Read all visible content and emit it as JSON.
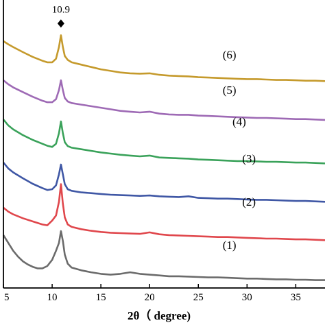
{
  "chart_data": {
    "type": "line",
    "xlabel": "2θ（ degree)",
    "ylabel": "",
    "xlim": [
      5,
      38
    ],
    "ylim": [
      0,
      7
    ],
    "xticks": [
      5,
      10,
      15,
      20,
      25,
      30,
      35
    ],
    "xtick_labels": [
      "5",
      "10",
      "15",
      "20",
      "25",
      "30",
      "35"
    ],
    "y_ticks_shown": false,
    "grid": false,
    "legend": "none",
    "annotations": [
      {
        "text": "10.9",
        "marker": "diamond",
        "x": 10.9,
        "y": 6.75
      }
    ],
    "series": [
      {
        "name": "(1)",
        "color": "#6b6b6b",
        "label_at": {
          "x": 27.5,
          "y": 1.0
        },
        "points": [
          [
            5,
            1.35
          ],
          [
            5.5,
            1.15
          ],
          [
            6,
            0.95
          ],
          [
            6.5,
            0.8
          ],
          [
            7,
            0.68
          ],
          [
            7.5,
            0.6
          ],
          [
            8,
            0.54
          ],
          [
            8.5,
            0.5
          ],
          [
            9,
            0.5
          ],
          [
            9.5,
            0.56
          ],
          [
            10,
            0.72
          ],
          [
            10.4,
            0.95
          ],
          [
            10.7,
            1.15
          ],
          [
            10.9,
            1.45
          ],
          [
            11.1,
            1.2
          ],
          [
            11.3,
            0.85
          ],
          [
            11.6,
            0.62
          ],
          [
            12,
            0.52
          ],
          [
            13,
            0.45
          ],
          [
            14,
            0.4
          ],
          [
            15,
            0.36
          ],
          [
            16,
            0.34
          ],
          [
            17,
            0.36
          ],
          [
            18,
            0.4
          ],
          [
            19,
            0.36
          ],
          [
            20,
            0.34
          ],
          [
            21,
            0.32
          ],
          [
            22,
            0.3
          ],
          [
            23,
            0.3
          ],
          [
            24,
            0.29
          ],
          [
            25,
            0.28
          ],
          [
            26,
            0.27
          ],
          [
            27,
            0.27
          ],
          [
            28,
            0.26
          ],
          [
            29,
            0.25
          ],
          [
            30,
            0.24
          ],
          [
            31,
            0.24
          ],
          [
            32,
            0.23
          ],
          [
            33,
            0.22
          ],
          [
            34,
            0.22
          ],
          [
            35,
            0.21
          ],
          [
            36,
            0.21
          ],
          [
            37,
            0.2
          ],
          [
            38,
            0.2
          ]
        ]
      },
      {
        "name": "(2)",
        "color": "#e0474c",
        "label_at": {
          "x": 29.5,
          "y": 2.1
        },
        "points": [
          [
            5,
            2.05
          ],
          [
            5.5,
            1.95
          ],
          [
            6,
            1.88
          ],
          [
            7,
            1.78
          ],
          [
            8,
            1.7
          ],
          [
            9,
            1.62
          ],
          [
            9.5,
            1.6
          ],
          [
            10,
            1.72
          ],
          [
            10.4,
            1.85
          ],
          [
            10.7,
            2.2
          ],
          [
            10.9,
            2.65
          ],
          [
            11.1,
            2.15
          ],
          [
            11.3,
            1.8
          ],
          [
            11.6,
            1.62
          ],
          [
            12,
            1.56
          ],
          [
            13,
            1.5
          ],
          [
            14,
            1.46
          ],
          [
            15,
            1.43
          ],
          [
            16,
            1.41
          ],
          [
            17,
            1.4
          ],
          [
            18,
            1.39
          ],
          [
            19,
            1.38
          ],
          [
            20,
            1.42
          ],
          [
            21,
            1.37
          ],
          [
            22,
            1.35
          ],
          [
            23,
            1.34
          ],
          [
            24,
            1.33
          ],
          [
            25,
            1.32
          ],
          [
            26,
            1.31
          ],
          [
            27,
            1.3
          ],
          [
            28,
            1.3
          ],
          [
            29,
            1.29
          ],
          [
            30,
            1.28
          ],
          [
            31,
            1.27
          ],
          [
            32,
            1.26
          ],
          [
            33,
            1.26
          ],
          [
            34,
            1.25
          ],
          [
            35,
            1.24
          ],
          [
            36,
            1.24
          ],
          [
            37,
            1.23
          ],
          [
            38,
            1.22
          ]
        ]
      },
      {
        "name": "(3)",
        "color": "#3f57a5",
        "label_at": {
          "x": 29.5,
          "y": 3.2
        },
        "points": [
          [
            5,
            3.2
          ],
          [
            5.5,
            3.05
          ],
          [
            6,
            2.95
          ],
          [
            7,
            2.8
          ],
          [
            8,
            2.66
          ],
          [
            9,
            2.55
          ],
          [
            9.5,
            2.5
          ],
          [
            10,
            2.52
          ],
          [
            10.4,
            2.62
          ],
          [
            10.7,
            2.9
          ],
          [
            10.9,
            3.15
          ],
          [
            11.1,
            2.9
          ],
          [
            11.3,
            2.65
          ],
          [
            11.6,
            2.52
          ],
          [
            12,
            2.48
          ],
          [
            13,
            2.44
          ],
          [
            14,
            2.42
          ],
          [
            15,
            2.4
          ],
          [
            16,
            2.38
          ],
          [
            17,
            2.37
          ],
          [
            18,
            2.36
          ],
          [
            19,
            2.35
          ],
          [
            20,
            2.36
          ],
          [
            21,
            2.34
          ],
          [
            22,
            2.33
          ],
          [
            23,
            2.32
          ],
          [
            24,
            2.34
          ],
          [
            25,
            2.3
          ],
          [
            26,
            2.29
          ],
          [
            27,
            2.28
          ],
          [
            28,
            2.28
          ],
          [
            29,
            2.27
          ],
          [
            30,
            2.26
          ],
          [
            31,
            2.25
          ],
          [
            32,
            2.25
          ],
          [
            33,
            2.24
          ],
          [
            34,
            2.23
          ],
          [
            35,
            2.22
          ],
          [
            36,
            2.22
          ],
          [
            37,
            2.21
          ],
          [
            38,
            2.2
          ]
        ]
      },
      {
        "name": "(4)",
        "color": "#3aa25a",
        "label_at": {
          "x": 28.5,
          "y": 4.15
        },
        "points": [
          [
            5,
            4.3
          ],
          [
            5.5,
            4.15
          ],
          [
            6,
            4.05
          ],
          [
            7,
            3.9
          ],
          [
            8,
            3.78
          ],
          [
            9,
            3.68
          ],
          [
            9.5,
            3.63
          ],
          [
            10,
            3.6
          ],
          [
            10.4,
            3.68
          ],
          [
            10.7,
            3.95
          ],
          [
            10.9,
            4.25
          ],
          [
            11.1,
            3.95
          ],
          [
            11.3,
            3.72
          ],
          [
            11.6,
            3.62
          ],
          [
            12,
            3.58
          ],
          [
            13,
            3.54
          ],
          [
            14,
            3.5
          ],
          [
            15,
            3.46
          ],
          [
            16,
            3.43
          ],
          [
            17,
            3.4
          ],
          [
            18,
            3.38
          ],
          [
            19,
            3.36
          ],
          [
            20,
            3.38
          ],
          [
            21,
            3.33
          ],
          [
            22,
            3.32
          ],
          [
            23,
            3.31
          ],
          [
            24,
            3.3
          ],
          [
            25,
            3.28
          ],
          [
            26,
            3.27
          ],
          [
            27,
            3.26
          ],
          [
            28,
            3.25
          ],
          [
            29,
            3.24
          ],
          [
            30,
            3.24
          ],
          [
            31,
            3.23
          ],
          [
            32,
            3.22
          ],
          [
            33,
            3.22
          ],
          [
            34,
            3.21
          ],
          [
            35,
            3.2
          ],
          [
            36,
            3.2
          ],
          [
            37,
            3.19
          ],
          [
            38,
            3.18
          ]
        ]
      },
      {
        "name": "(5)",
        "color": "#9e6ab5",
        "label_at": {
          "x": 27.5,
          "y": 4.95
        },
        "points": [
          [
            5,
            5.3
          ],
          [
            5.5,
            5.2
          ],
          [
            6,
            5.12
          ],
          [
            7,
            5.0
          ],
          [
            8,
            4.88
          ],
          [
            9,
            4.78
          ],
          [
            9.5,
            4.74
          ],
          [
            10,
            4.74
          ],
          [
            10.4,
            4.82
          ],
          [
            10.7,
            5.05
          ],
          [
            10.9,
            5.3
          ],
          [
            11.1,
            5.05
          ],
          [
            11.3,
            4.85
          ],
          [
            11.6,
            4.76
          ],
          [
            12,
            4.72
          ],
          [
            13,
            4.68
          ],
          [
            14,
            4.64
          ],
          [
            15,
            4.6
          ],
          [
            16,
            4.56
          ],
          [
            17,
            4.52
          ],
          [
            18,
            4.5
          ],
          [
            19,
            4.48
          ],
          [
            20,
            4.5
          ],
          [
            21,
            4.45
          ],
          [
            22,
            4.43
          ],
          [
            23,
            4.42
          ],
          [
            24,
            4.42
          ],
          [
            25,
            4.4
          ],
          [
            26,
            4.39
          ],
          [
            27,
            4.38
          ],
          [
            28,
            4.37
          ],
          [
            29,
            4.36
          ],
          [
            30,
            4.35
          ],
          [
            31,
            4.34
          ],
          [
            32,
            4.34
          ],
          [
            33,
            4.33
          ],
          [
            34,
            4.32
          ],
          [
            35,
            4.31
          ],
          [
            36,
            4.31
          ],
          [
            37,
            4.3
          ],
          [
            38,
            4.29
          ]
        ]
      },
      {
        "name": "(6)",
        "color": "#c59a2c",
        "label_at": {
          "x": 27.5,
          "y": 5.85
        },
        "points": [
          [
            5,
            6.3
          ],
          [
            5.5,
            6.22
          ],
          [
            6,
            6.15
          ],
          [
            7,
            6.02
          ],
          [
            8,
            5.9
          ],
          [
            9,
            5.8
          ],
          [
            9.5,
            5.76
          ],
          [
            10,
            5.76
          ],
          [
            10.4,
            5.85
          ],
          [
            10.7,
            6.15
          ],
          [
            10.9,
            6.45
          ],
          [
            11.1,
            6.15
          ],
          [
            11.3,
            5.92
          ],
          [
            11.6,
            5.82
          ],
          [
            12,
            5.76
          ],
          [
            13,
            5.7
          ],
          [
            14,
            5.64
          ],
          [
            15,
            5.58
          ],
          [
            16,
            5.54
          ],
          [
            17,
            5.5
          ],
          [
            18,
            5.48
          ],
          [
            19,
            5.47
          ],
          [
            20,
            5.48
          ],
          [
            21,
            5.44
          ],
          [
            22,
            5.42
          ],
          [
            23,
            5.41
          ],
          [
            24,
            5.4
          ],
          [
            25,
            5.38
          ],
          [
            26,
            5.37
          ],
          [
            27,
            5.36
          ],
          [
            28,
            5.35
          ],
          [
            29,
            5.34
          ],
          [
            30,
            5.33
          ],
          [
            31,
            5.33
          ],
          [
            32,
            5.32
          ],
          [
            33,
            5.31
          ],
          [
            34,
            5.31
          ],
          [
            35,
            5.3
          ],
          [
            36,
            5.29
          ],
          [
            37,
            5.29
          ],
          [
            38,
            5.28
          ]
        ]
      }
    ]
  }
}
